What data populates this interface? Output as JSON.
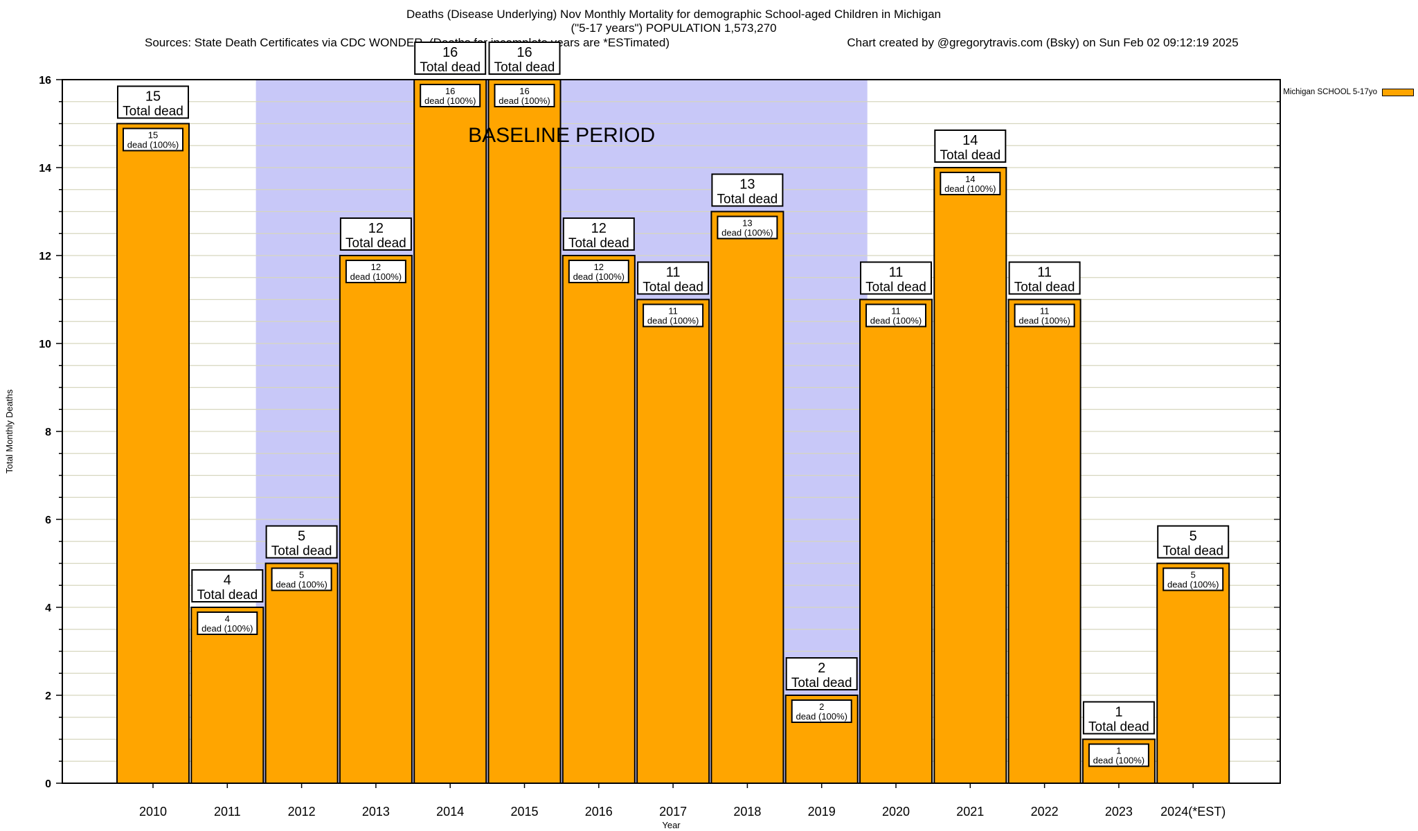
{
  "chart_data": {
    "type": "bar",
    "title": "Deaths (Disease Underlying) Nov Monthly Mortality for demographic School-aged Children in Michigan",
    "subtitle": "(\"5-17 years\") POPULATION 1,573,270",
    "sources_note": "Sources: State Death Certificates via CDC WONDER. (Deaths for incomplete years are *ESTimated)",
    "credit": "Chart created by @gregorytravis.com (Bsky) on Sun Feb 02 09:12:19 2025",
    "xlabel": "Year",
    "ylabel": "Total Monthly Deaths",
    "ylim": [
      0,
      16
    ],
    "ytick_step": 2,
    "grid_step": 0.5,
    "grid": true,
    "categories": [
      "2010",
      "2011",
      "2012",
      "2013",
      "2014",
      "2015",
      "2016",
      "2017",
      "2018",
      "2019",
      "2020",
      "2021",
      "2022",
      "2023",
      "2024(*EST)"
    ],
    "series": [
      {
        "name": "Michigan SCHOOL 5-17yo",
        "color": "#FFA500",
        "values": [
          15,
          4,
          5,
          12,
          16,
          16,
          12,
          11,
          13,
          2,
          11,
          14,
          11,
          1,
          5
        ]
      }
    ],
    "bar_label_top_suffix": "Total dead",
    "bar_label_inner_suffix": "dead (100%)",
    "baseline_band": {
      "label": "BASELINE PERIOD",
      "from": "2012",
      "to": "2019",
      "color": "#C8C8F8"
    },
    "legend_position": "top-right",
    "colors": {
      "bar_fill": "#FFA500",
      "bar_border": "#000000",
      "grid_line": "#D6D6BE",
      "frame": "#000000",
      "label_box_fill": "#FFFFFF"
    }
  }
}
